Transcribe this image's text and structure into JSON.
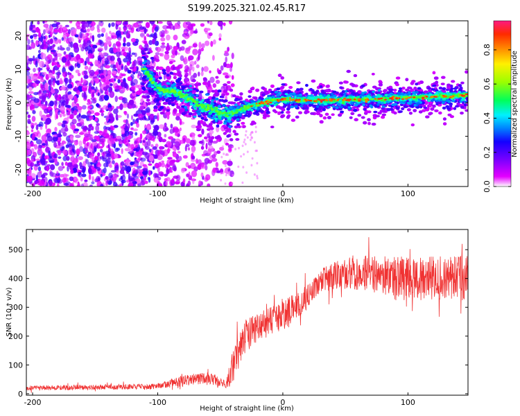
{
  "title": "S199.2025.321.02.45.R17",
  "chart_data": [
    {
      "type": "heatmap",
      "title": "S199.2025.321.02.45.R17",
      "xlabel": "Height of straight line (km)",
      "ylabel": "Frequency (Hz)",
      "xlim": [
        -205,
        148
      ],
      "ylim": [
        -25,
        24.5
      ],
      "x_ticks": [
        -200,
        -100,
        0,
        100
      ],
      "x_tick_labels": [
        "-200",
        "-100",
        "0",
        "100"
      ],
      "y_ticks": [
        -20,
        -10,
        0,
        10,
        20
      ],
      "y_tick_labels": [
        "-20",
        "-10",
        "0",
        "10",
        "20"
      ],
      "colorbar": {
        "label": "Normalized spectral amplitude",
        "range": [
          0,
          0.97
        ],
        "ticks": [
          0.0,
          0.2,
          0.4,
          0.6,
          0.8
        ],
        "tick_labels": [
          "0.0",
          "0.2",
          "0.4",
          "0.6",
          "0.8"
        ],
        "colormap": [
          "#ffffff",
          "#e400ff",
          "#7b00ff",
          "#1400ff",
          "#0080ff",
          "#00f0ff",
          "#00ff5a",
          "#9bff00",
          "#fff000",
          "#ff8c00",
          "#ff2a00",
          "#ff1a80"
        ]
      },
      "ridge": {
        "description_points_x": [
          -110,
          -100,
          -90,
          -80,
          -70,
          -60,
          -50,
          -45,
          -40,
          -30,
          -20,
          -10,
          0,
          20,
          40,
          60,
          80,
          100,
          120,
          148
        ],
        "description_points_y": [
          10,
          4,
          3.5,
          2.5,
          0,
          -1.5,
          -3,
          -3.5,
          -3,
          -1.5,
          -0.5,
          0.5,
          1,
          0.8,
          0.8,
          0.9,
          1.2,
          1.5,
          1.8,
          2.2
        ]
      }
    },
    {
      "type": "line",
      "xlabel": "Height of straight line (km)",
      "ylabel": "SNR (10 * v/v)",
      "xlim": [
        -205,
        148
      ],
      "ylim": [
        -5,
        570
      ],
      "x_ticks": [
        -200,
        -100,
        0,
        100
      ],
      "x_tick_labels": [
        "-200",
        "-100",
        "0",
        "100"
      ],
      "y_ticks": [
        0,
        100,
        200,
        300,
        400,
        500
      ],
      "y_tick_labels": [
        "0",
        "100",
        "200",
        "300",
        "400",
        "500"
      ],
      "line_color": "#f03232",
      "envelope": {
        "x": [
          -205,
          -100,
          -80,
          -60,
          -45,
          -40,
          -30,
          -20,
          -10,
          0,
          10,
          20,
          30,
          40,
          60,
          80,
          100,
          120,
          148
        ],
        "mean": [
          20,
          25,
          45,
          55,
          35,
          100,
          200,
          230,
          260,
          270,
          300,
          340,
          390,
          410,
          420,
          410,
          400,
          400,
          400
        ],
        "spread": [
          8,
          10,
          20,
          20,
          15,
          60,
          60,
          50,
          60,
          60,
          50,
          40,
          40,
          50,
          60,
          70,
          75,
          80,
          80
        ]
      }
    }
  ]
}
